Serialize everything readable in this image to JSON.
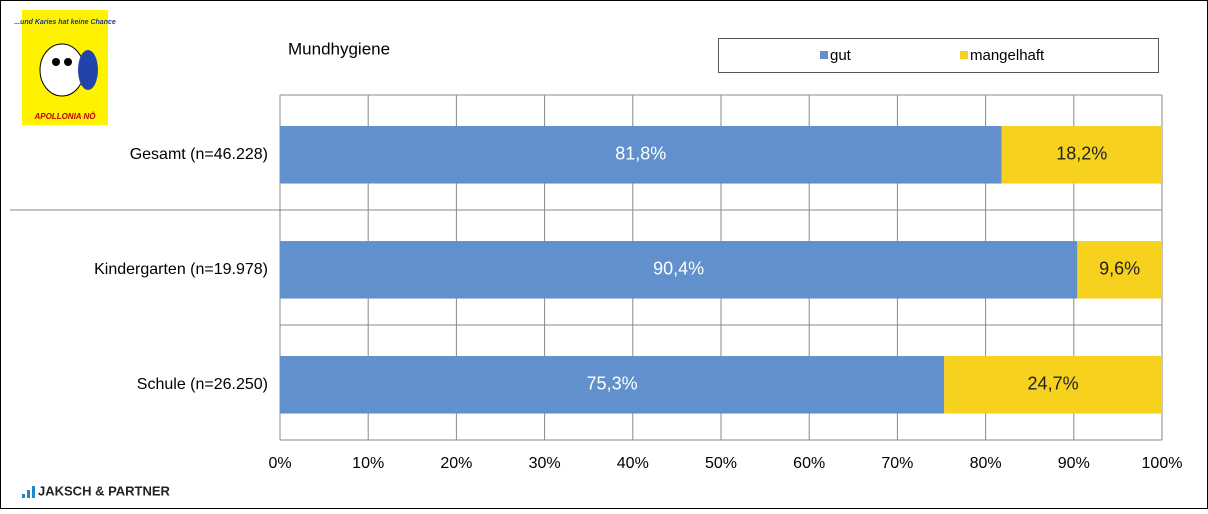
{
  "branding": {
    "badge_top": "...und Karies hat keine Chance",
    "badge_bottom": "APOLLONIA NÖ",
    "company": "JAKSCH & PARTNER"
  },
  "chart_data": {
    "type": "stacked-bar-horizontal",
    "title": "Mundhygiene",
    "categories": [
      "Gesamt (n=46.228)",
      "Kindergarten (n=19.978)",
      "Schule (n=26.250)"
    ],
    "series": [
      {
        "name": "gut",
        "color": "#6190cc",
        "values": [
          81.8,
          90.4,
          75.3
        ],
        "value_labels": [
          "81,8%",
          "90,4%",
          "75,3%"
        ]
      },
      {
        "name": "mangelhaft",
        "color": "#f6d11d",
        "values": [
          18.2,
          9.6,
          24.7
        ],
        "value_labels": [
          "18,2%",
          "9,6%",
          "24,7%"
        ]
      }
    ],
    "xlim": [
      0,
      100
    ],
    "xticks": [
      {
        "value": 0,
        "label": "0%"
      },
      {
        "value": 10,
        "label": "10%"
      },
      {
        "value": 20,
        "label": "20%"
      },
      {
        "value": 30,
        "label": "30%"
      },
      {
        "value": 40,
        "label": "40%"
      },
      {
        "value": 50,
        "label": "50%"
      },
      {
        "value": 60,
        "label": "60%"
      },
      {
        "value": 70,
        "label": "70%"
      },
      {
        "value": 80,
        "label": "80%"
      },
      {
        "value": 90,
        "label": "90%"
      },
      {
        "value": 100,
        "label": "100%"
      }
    ],
    "grid": true,
    "legend": "top-right"
  }
}
